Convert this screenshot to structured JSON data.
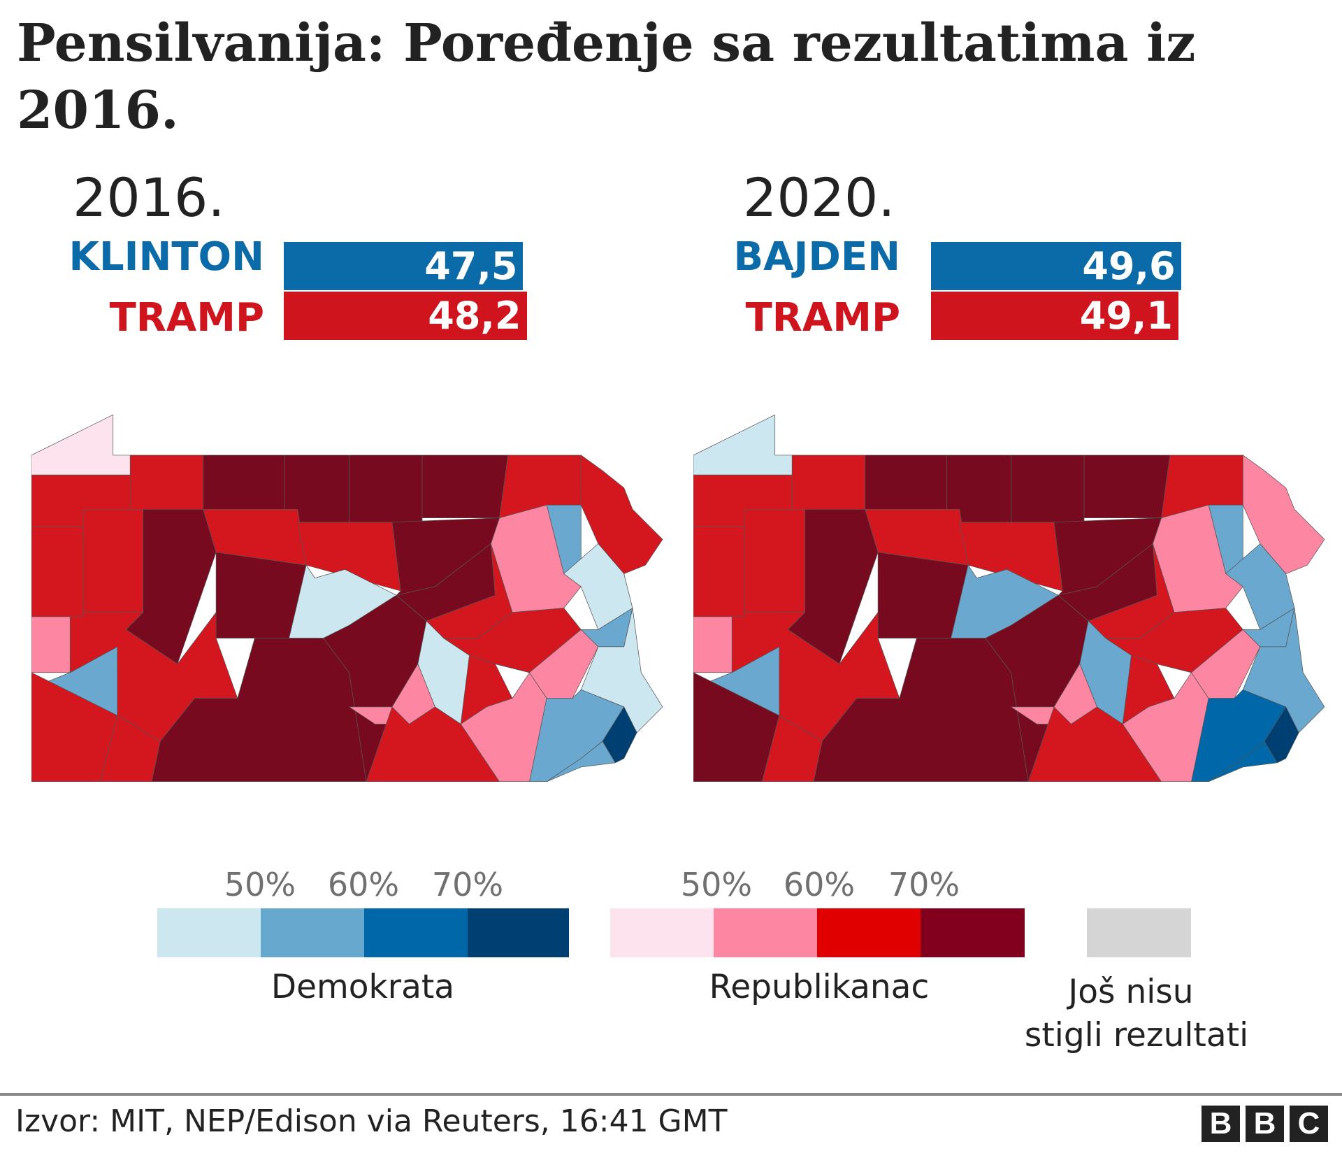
{
  "title": "Pensilvanija: Poređenje sa rezultatima iz 2016.",
  "colors": {
    "dem": "#0b6aa8",
    "rep": "#cf141e",
    "D1": "#cce7ef",
    "D2": "#6aa8cf",
    "D3": "#0068a8",
    "D4": "#003f72",
    "R1": "#fde3ee",
    "R2": "#fd87a3",
    "R3": "#d4161f",
    "R4": "#770a1e",
    "NA": "#d5d5d5"
  },
  "panels": [
    {
      "year": "2016.",
      "dem": {
        "name": "KLINTON",
        "value": "47,5",
        "pct": 47.5
      },
      "rep": {
        "name": "TRAMP",
        "value": "48,2",
        "pct": 48.2
      },
      "county_fills": [
        "R1",
        "R3",
        "R3",
        "R4",
        "R4",
        "R4",
        "R4",
        "R3",
        "R3",
        "D2",
        "R2",
        "D1",
        "R3",
        "R2",
        "R3",
        "R4",
        "R3",
        "R3",
        "R4",
        "D1",
        "R4",
        "D2",
        "R3",
        "R3",
        "R3",
        "R4",
        "R4",
        "R4",
        "R3",
        "D1",
        "R3",
        "R2",
        "R3",
        "R3",
        "R2",
        "R2",
        "D2",
        "D1",
        "D2",
        "D2",
        "D4"
      ]
    },
    {
      "year": "2020.",
      "dem": {
        "name": "BAJDEN",
        "value": "49,6",
        "pct": 49.6
      },
      "rep": {
        "name": "TRAMP",
        "value": "49,1",
        "pct": 49.1
      },
      "county_fills": [
        "D1",
        "R3",
        "R3",
        "R4",
        "R4",
        "R4",
        "R4",
        "R3",
        "R2",
        "D2",
        "R2",
        "D2",
        "R3",
        "R2",
        "R3",
        "R4",
        "R3",
        "R3",
        "R4",
        "D2",
        "R4",
        "D2",
        "R3",
        "R4",
        "R3",
        "R4",
        "R4",
        "R4",
        "R3",
        "D2",
        "R3",
        "R2",
        "R3",
        "R3",
        "R2",
        "R2",
        "D2",
        "D2",
        "D3",
        "D3",
        "D4"
      ]
    }
  ],
  "legend": {
    "dem_ticks": [
      "50%",
      "60%",
      "70%"
    ],
    "rep_ticks": [
      "50%",
      "60%",
      "70%"
    ],
    "dem_label": "Demokrata",
    "rep_label": "Republikanac",
    "na_label_line1": "Još nisu",
    "na_label_line2": "stigli rezultati"
  },
  "footer": {
    "source": "Izvor: MIT, NEP/Edison via Reuters, 16:41 GMT",
    "logo": "BBC"
  }
}
